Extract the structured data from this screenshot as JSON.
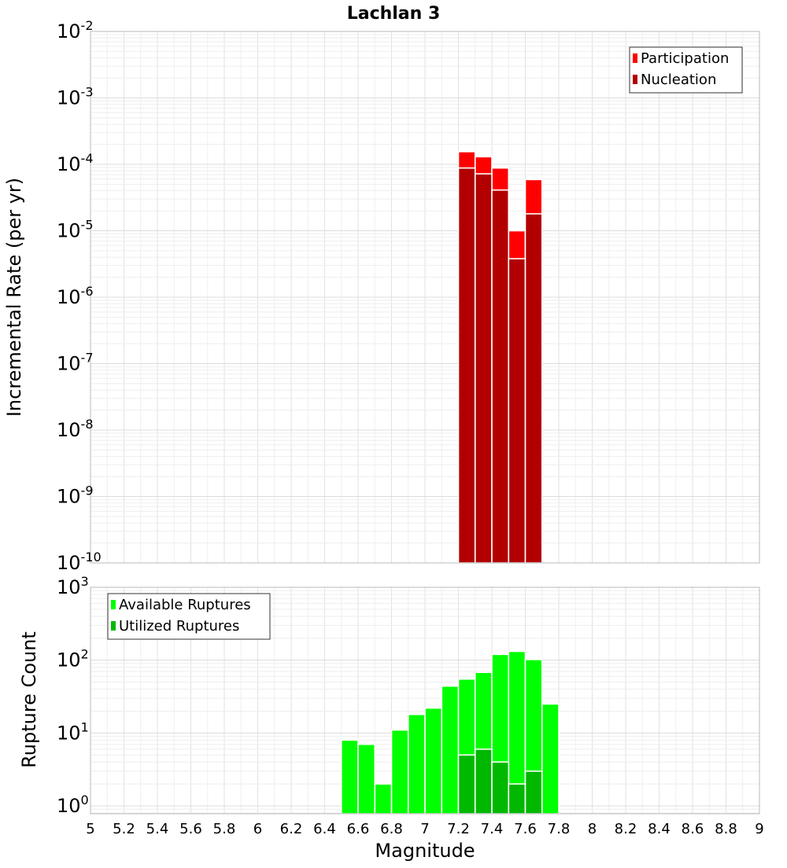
{
  "chart_data": {
    "title": "Lachlan 3",
    "xlabel": "Magnitude",
    "xlim": [
      5,
      9
    ],
    "x_ticks": [
      "5",
      "5.2",
      "5.4",
      "5.6",
      "5.8",
      "6",
      "6.2",
      "6.4",
      "6.6",
      "6.8",
      "7",
      "7.2",
      "7.4",
      "7.6",
      "7.8",
      "8",
      "8.2",
      "8.4",
      "8.6",
      "8.8",
      "9"
    ],
    "grid": true,
    "panels": [
      {
        "type": "bar",
        "scale": "log",
        "ylabel": "Incremental Rate (per yr)",
        "ylim": [
          1e-10,
          0.01
        ],
        "y_ticks": [
          {
            "base": "10",
            "exp": "-10"
          },
          {
            "base": "10",
            "exp": "-9"
          },
          {
            "base": "10",
            "exp": "-8"
          },
          {
            "base": "10",
            "exp": "-7"
          },
          {
            "base": "10",
            "exp": "-6"
          },
          {
            "base": "10",
            "exp": "-5"
          },
          {
            "base": "10",
            "exp": "-4"
          },
          {
            "base": "10",
            "exp": "-3"
          },
          {
            "base": "10",
            "exp": "-2"
          }
        ],
        "legend_position": "top-right",
        "series": [
          {
            "name": "Participation",
            "color": "#ff0000",
            "x": [
              7.25,
              7.35,
              7.45,
              7.55,
              7.65
            ],
            "values": [
              0.000155,
              0.00013,
              8.8e-05,
              1e-05,
              5.9e-05
            ]
          },
          {
            "name": "Nucleation",
            "color": "#b20000",
            "x": [
              7.25,
              7.35,
              7.45,
              7.55,
              7.65
            ],
            "values": [
              8.8e-05,
              7.2e-05,
              4.1e-05,
              3.8e-06,
              1.8e-05
            ]
          }
        ]
      },
      {
        "type": "bar",
        "scale": "log",
        "ylabel": "Rupture Count",
        "ylim": [
          0.78,
          1000
        ],
        "y_ticks": [
          {
            "base": "10",
            "exp": "0"
          },
          {
            "base": "10",
            "exp": "1"
          },
          {
            "base": "10",
            "exp": "2"
          },
          {
            "base": "10",
            "exp": "3"
          }
        ],
        "legend_position": "top-left",
        "series": [
          {
            "name": "Available Ruptures",
            "color": "#00ff00",
            "x": [
              6.55,
              6.65,
              6.75,
              6.85,
              6.95,
              7.05,
              7.15,
              7.25,
              7.35,
              7.45,
              7.55,
              7.65,
              7.75
            ],
            "values": [
              8,
              7,
              2,
              11,
              18,
              22,
              44,
              55,
              68,
              120,
              132,
              102,
              25
            ]
          },
          {
            "name": "Utilized Ruptures",
            "color": "#00b800",
            "x": [
              7.25,
              7.35,
              7.45,
              7.55,
              7.65
            ],
            "values": [
              5,
              6,
              4,
              2,
              3
            ]
          }
        ]
      }
    ]
  }
}
